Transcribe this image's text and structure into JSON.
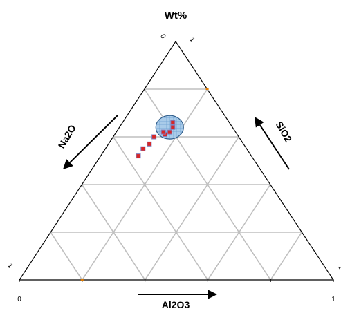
{
  "chart_data": {
    "type": "ternary",
    "title": "Wt%",
    "axes": {
      "top": {
        "label": "SiO2",
        "min": 0,
        "max": 1,
        "min_label": "0",
        "max_label": "1"
      },
      "left": {
        "label": "Na2O",
        "min": 0,
        "max": 1,
        "min_label": "0",
        "max_label": "1"
      },
      "bottom": {
        "label": "Al2O3",
        "min": 0,
        "max": 1,
        "min_label": "0",
        "max_label": "1"
      }
    },
    "grid": true,
    "grid_divisions": 5,
    "grid_color": "#bfbfbf",
    "series": [
      {
        "marker": "square",
        "fill_color": "#d62728",
        "edge_color": "#7f7fbf",
        "points": [
          {
            "top": 0.66,
            "bottom": 0.16,
            "left": 0.18
          },
          {
            "top": 0.64,
            "bottom": 0.17,
            "left": 0.19
          },
          {
            "top": 0.62,
            "bottom": 0.17,
            "left": 0.21
          },
          {
            "top": 0.61,
            "bottom": 0.16,
            "left": 0.23
          },
          {
            "top": 0.62,
            "bottom": 0.15,
            "left": 0.23
          },
          {
            "top": 0.6,
            "bottom": 0.13,
            "left": 0.27
          },
          {
            "top": 0.57,
            "bottom": 0.13,
            "left": 0.3
          },
          {
            "top": 0.55,
            "bottom": 0.12,
            "left": 0.33
          },
          {
            "top": 0.52,
            "bottom": 0.12,
            "left": 0.36
          }
        ]
      }
    ],
    "region": {
      "shape": "ellipse",
      "fill_color": "#9fc5e8",
      "edge_color": "#2e5c8a",
      "center": {
        "top": 0.64,
        "bottom": 0.16,
        "left": 0.2
      }
    },
    "arrow_color": "#000000"
  }
}
